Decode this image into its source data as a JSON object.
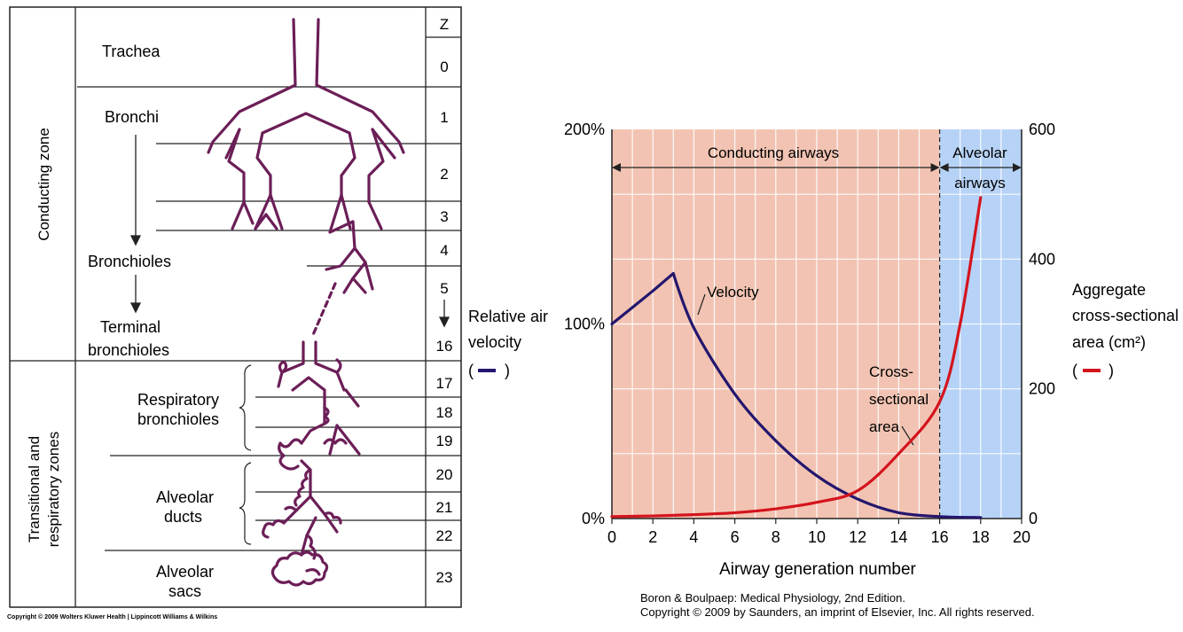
{
  "left_figure": {
    "z_header": "Z",
    "zones": [
      "Conducting zone",
      "Transitional and",
      "respiratory zones"
    ],
    "airways": {
      "trachea": "Trachea",
      "bronchi": "Bronchi",
      "bronchioles": "Bronchioles",
      "terminal_1": "Terminal",
      "terminal_2": "bronchioles",
      "resp_1": "Respiratory",
      "resp_2": "bronchioles",
      "ducts_1": "Alveolar",
      "ducts_2": "ducts",
      "sacs_1": "Alveolar",
      "sacs_2": "sacs"
    },
    "z_numbers": [
      "0",
      "1",
      "2",
      "3",
      "4",
      "5",
      "16",
      "17",
      "18",
      "19",
      "20",
      "21",
      "22",
      "23"
    ],
    "copyright": "Copyright © 2009 Wolters Kluwer Health | Lippincott Williams & Wilkins",
    "colors": {
      "airway": "#6b1e57",
      "line": "#222222"
    }
  },
  "chart_data": {
    "type": "line",
    "x": [
      0,
      2,
      3,
      4,
      6,
      8,
      10,
      12,
      14,
      16,
      18
    ],
    "xlim": [
      0,
      20
    ],
    "x_ticks": [
      "0",
      "2",
      "4",
      "6",
      "8",
      "10",
      "12",
      "14",
      "16",
      "18",
      "20"
    ],
    "xlabel": "Airway generation number",
    "y_left_ticks": [
      "0%",
      "100%",
      "200%"
    ],
    "ylim_left": [
      0,
      200
    ],
    "ylabel_left": [
      "Relative air",
      "velocity"
    ],
    "ylabel_left_legend": "( — )",
    "y_right_ticks": [
      "0",
      "200",
      "400",
      "600"
    ],
    "ylim_right": [
      0,
      600
    ],
    "ylabel_right": [
      "Aggregate",
      "cross-sectional",
      "area (cm²)"
    ],
    "ylabel_right_legend": "( — )",
    "regions": [
      {
        "label": "Conducting airways",
        "from": 0,
        "to": 16,
        "color": "#f2c3b2"
      },
      {
        "label_1": "Alveolar",
        "label_2": "airways",
        "from": 16,
        "to": 20,
        "color": "#b6d2f6"
      }
    ],
    "series": [
      {
        "name": "Velocity",
        "axis": "left",
        "color": "#23166e",
        "x": [
          0,
          2,
          3,
          4,
          6,
          8,
          10,
          12,
          14,
          16,
          18
        ],
        "values": [
          100,
          117,
          126,
          98,
          64,
          40,
          22,
          10,
          3,
          1,
          0.5
        ]
      },
      {
        "name": "Cross-sectional area",
        "axis": "right",
        "color": "#d4141d",
        "x": [
          0,
          2,
          4,
          6,
          8,
          10,
          12,
          14,
          16,
          17,
          18
        ],
        "values": [
          3,
          4,
          6,
          9,
          15,
          25,
          43,
          100,
          180,
          300,
          495
        ]
      }
    ],
    "annotations": {
      "velocity": "Velocity",
      "csa_1": "Cross-",
      "csa_2": "sectional",
      "csa_3": "area"
    },
    "grid": true,
    "credit_1": "Boron & Boulpaep: Medical Physiology, 2nd Edition.",
    "credit_2": "Copyright © 2009 by Saunders, an imprint of Elsevier, Inc. All rights reserved."
  }
}
